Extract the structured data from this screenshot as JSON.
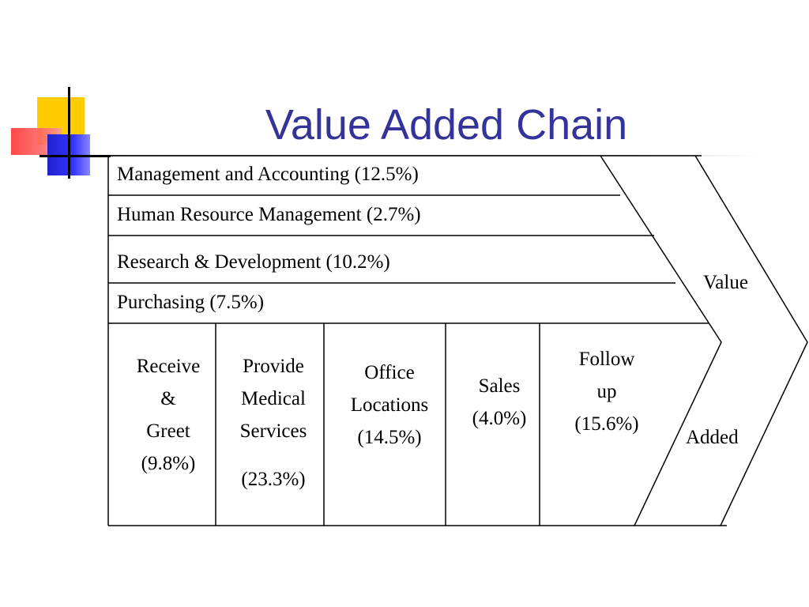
{
  "slide": {
    "title": "Value Added Chain"
  },
  "support_activities": [
    {
      "label": "Management and Accounting (12.5%)"
    },
    {
      "label": "Human Resource Management (2.7%)"
    },
    {
      "label": "Research & Development (10.2%)"
    },
    {
      "label": "Purchasing (7.5%)"
    }
  ],
  "primary_activities": [
    {
      "lines": [
        "Receive",
        "&",
        "Greet",
        "(9.8%)"
      ]
    },
    {
      "lines": [
        "Provide",
        "Medical",
        "Services"
      ],
      "percent": "(23.3%)"
    },
    {
      "lines": [
        "Office",
        "Locations",
        "(14.5%)"
      ]
    },
    {
      "lines": [
        "Sales",
        "(4.0%)"
      ]
    },
    {
      "lines": [
        "Follow",
        "up",
        "(15.6%)"
      ]
    }
  ],
  "arrow": {
    "top_word": "Value",
    "bottom_word": "Added"
  },
  "colors": {
    "title": "#333399",
    "lines": "#000000",
    "deco_yellow": "#ffcc00",
    "deco_red": "#ff3333",
    "deco_blue": "#3333ff"
  }
}
